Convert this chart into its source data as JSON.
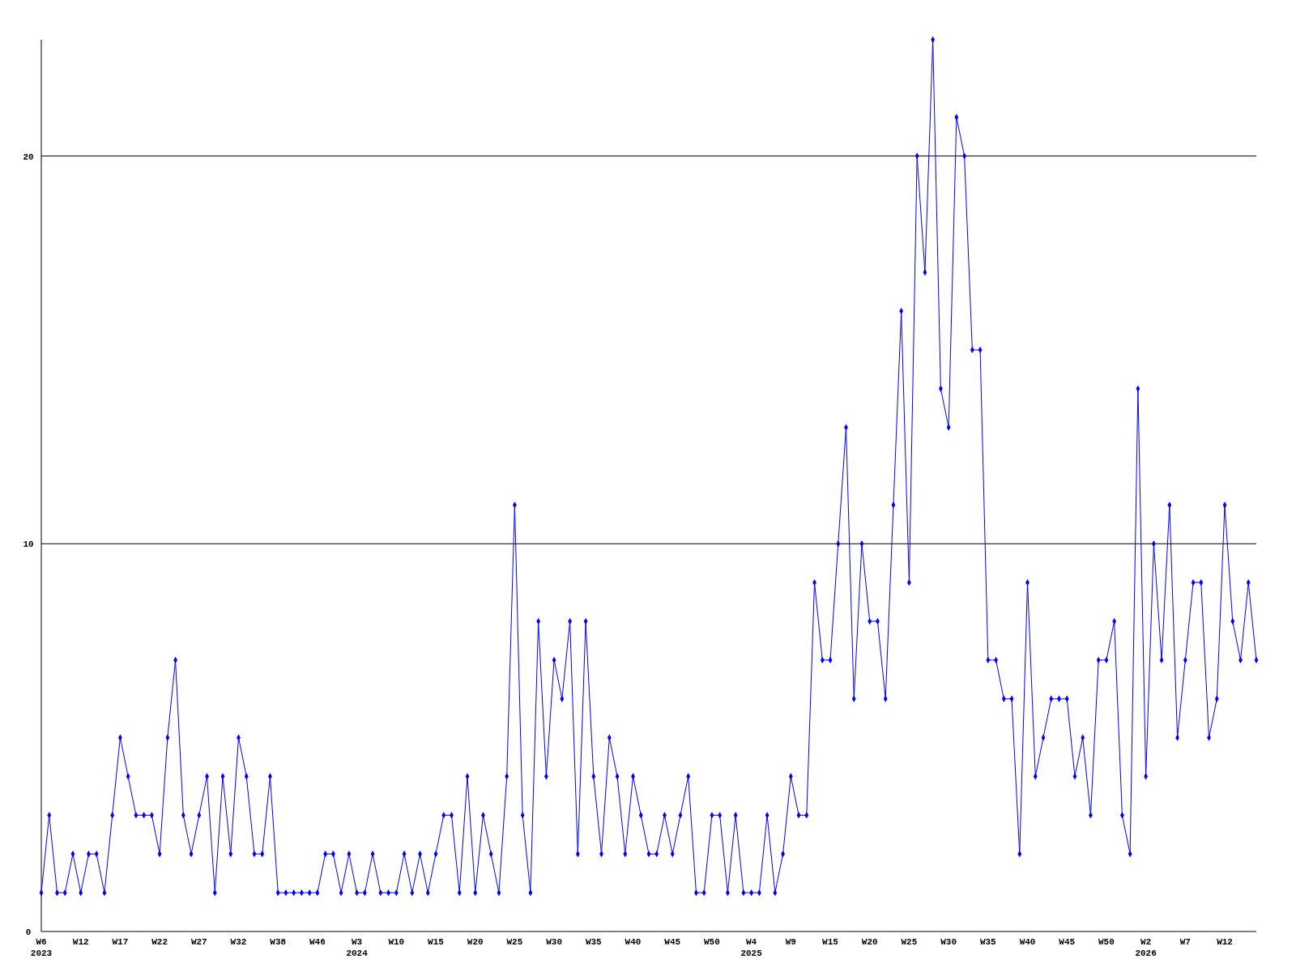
{
  "chart_data": {
    "type": "line",
    "categories": [
      "W6\n2023",
      null,
      null,
      null,
      null,
      "W12",
      null,
      null,
      null,
      null,
      "W17",
      null,
      null,
      null,
      null,
      "W22",
      null,
      null,
      null,
      null,
      "W27",
      null,
      null,
      null,
      null,
      "W32",
      null,
      null,
      null,
      null,
      "W38",
      null,
      null,
      null,
      null,
      "W46",
      null,
      null,
      null,
      null,
      "W3\n2024",
      null,
      null,
      null,
      null,
      "W10",
      null,
      null,
      null,
      null,
      "W15",
      null,
      null,
      null,
      null,
      "W20",
      null,
      null,
      null,
      null,
      "W25",
      null,
      null,
      null,
      null,
      "W30",
      null,
      null,
      null,
      null,
      "W35",
      null,
      null,
      null,
      null,
      "W40",
      null,
      null,
      null,
      null,
      "W45",
      null,
      null,
      null,
      null,
      "W50",
      null,
      null,
      null,
      null,
      "W4\n2025",
      null,
      null,
      null,
      null,
      "W9",
      null,
      null,
      null,
      null,
      "W15",
      null,
      null,
      null,
      null,
      "W20",
      null,
      null,
      null,
      null,
      "W25",
      null,
      null,
      null,
      null,
      "W30",
      null,
      null,
      null,
      null,
      "W35",
      null,
      null,
      null,
      null,
      "W40",
      null,
      null,
      null,
      null,
      "W45",
      null,
      null,
      null,
      null,
      "W50",
      null,
      null,
      null,
      null,
      "W2\n2026",
      null,
      null,
      null,
      null,
      "W7",
      null,
      null,
      null,
      null,
      "W12",
      null,
      null,
      null,
      null
    ],
    "series": [
      {
        "color": "#0000ff",
        "values": [
          1,
          3,
          1,
          1,
          2,
          1,
          2,
          2,
          1,
          3,
          5,
          4,
          3,
          3,
          3,
          2,
          5,
          7,
          3,
          2,
          3,
          4,
          1,
          4,
          2,
          5,
          4,
          2,
          2,
          4,
          1,
          1,
          1,
          1,
          1,
          1,
          2,
          2,
          1,
          2,
          1,
          1,
          2,
          1,
          1,
          1,
          2,
          1,
          2,
          1,
          2,
          3,
          3,
          1,
          4,
          1,
          3,
          2,
          1,
          4,
          11,
          3,
          1,
          8,
          4,
          7,
          6,
          8,
          2,
          8,
          4,
          2,
          5,
          4,
          2,
          4,
          3,
          2,
          2,
          3,
          2,
          3,
          4,
          1,
          1,
          3,
          3,
          1,
          3,
          1,
          1,
          1,
          3,
          1,
          2,
          4,
          3,
          3,
          9,
          7,
          7,
          10,
          13,
          6,
          10,
          8,
          8,
          6,
          11,
          16,
          9,
          20,
          17,
          23,
          14,
          13,
          21,
          20,
          15,
          15,
          7,
          7,
          6,
          6,
          2,
          9,
          4,
          5,
          6,
          6,
          6,
          4,
          5,
          3,
          7,
          7,
          8,
          3,
          2,
          14,
          4,
          10,
          7,
          11,
          5,
          7,
          9,
          9,
          5,
          6,
          11,
          8,
          7,
          9,
          7
        ]
      }
    ],
    "ylim": [
      0,
      23
    ],
    "yticks": [
      0,
      10,
      20
    ],
    "grid": "y",
    "marker": "diamond",
    "line_style": "solid"
  }
}
